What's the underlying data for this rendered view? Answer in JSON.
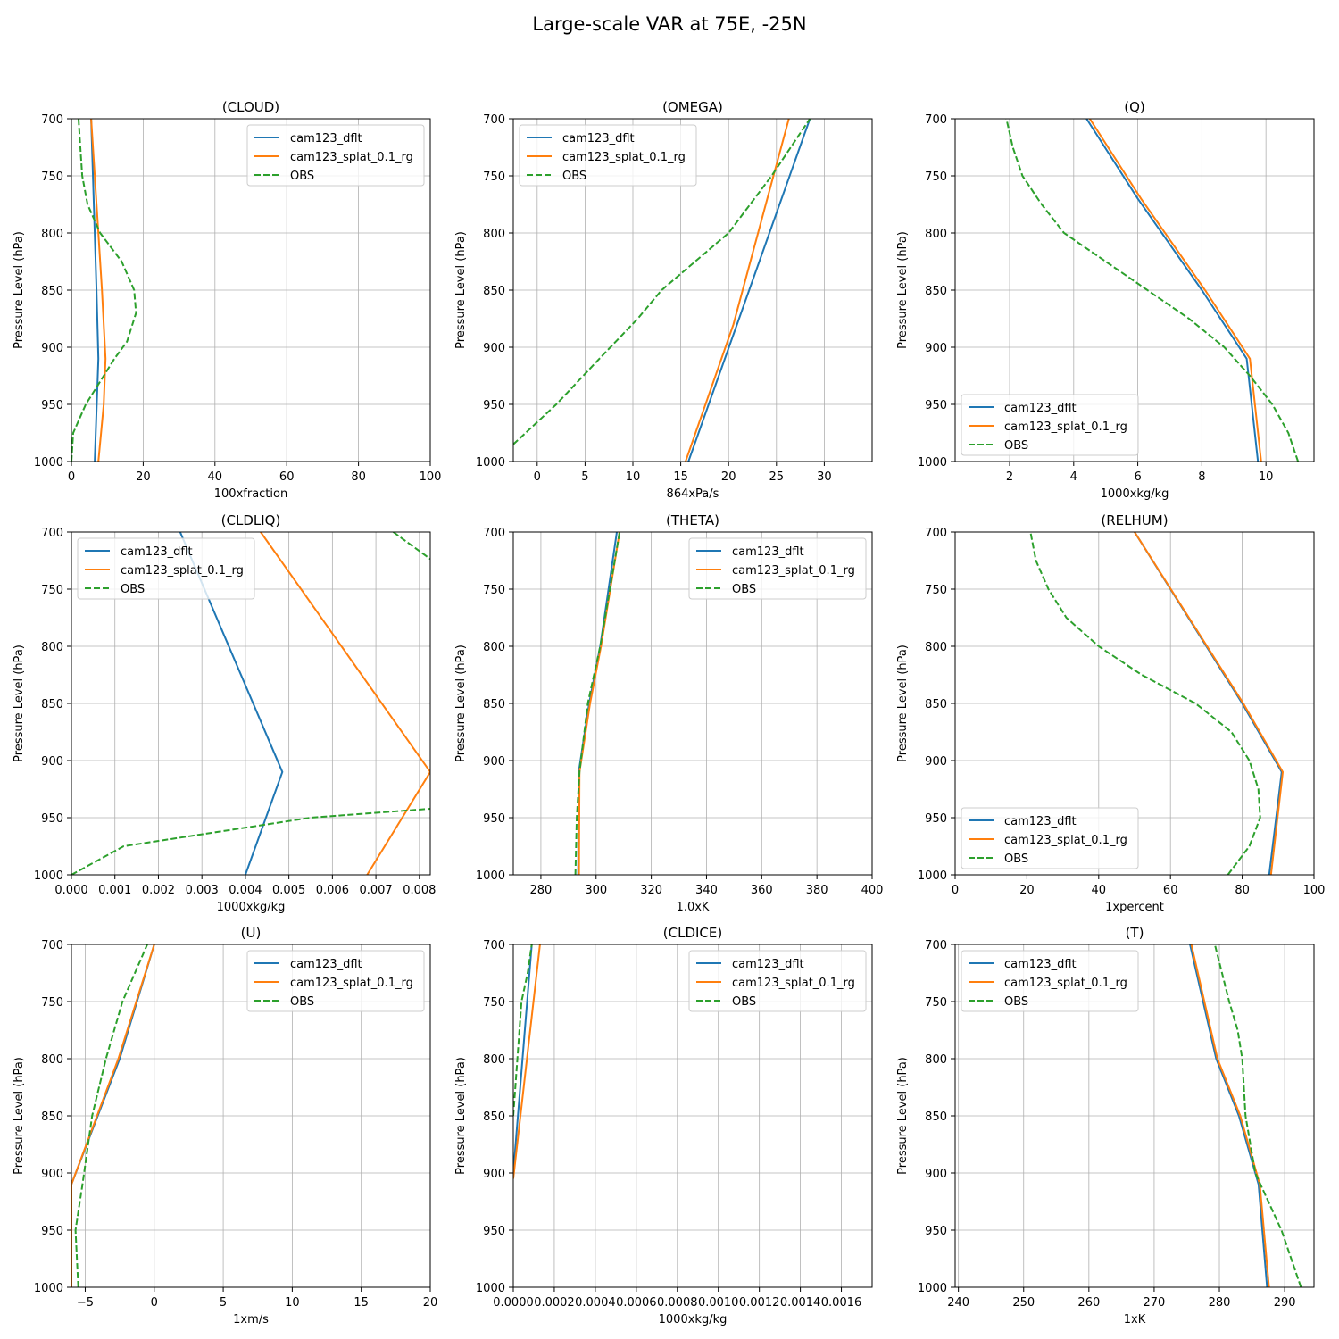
{
  "figure": {
    "title": "Large-scale VAR at 75E, -25N"
  },
  "colors": {
    "cam123_dflt": "#1f77b4",
    "cam123_splat_0.1_rg": "#ff7f0e",
    "OBS": "#2ca02c",
    "grid": "#b0b0b0"
  },
  "chart_data": [
    {
      "type": "line",
      "title": "(CLOUD)",
      "xlabel": "100xfraction",
      "ylabel": "Pressure Level (hPa)",
      "xlim": [
        0,
        100
      ],
      "ylim": [
        1000,
        700
      ],
      "xticks": [
        0,
        20,
        40,
        60,
        80,
        100
      ],
      "xtick_labels": [
        "0",
        "20",
        "40",
        "60",
        "80",
        "100"
      ],
      "yticks": [
        700,
        750,
        800,
        850,
        900,
        950,
        1000
      ],
      "ytick_labels": [
        "700",
        "750",
        "800",
        "850",
        "900",
        "950",
        "1000"
      ],
      "legend": "upper right",
      "grid": true,
      "series": [
        {
          "name": "cam123_dflt",
          "style": "solid",
          "x": [
            6.5,
            7.5,
            7,
            6.5,
            5.5
          ],
          "y": [
            1000,
            910,
            850,
            800,
            700
          ]
        },
        {
          "name": "cam123_splat_0.1_rg",
          "style": "solid",
          "x": [
            7.5,
            9,
            9.5,
            8.5,
            7.5,
            5.5
          ],
          "y": [
            1000,
            950,
            910,
            850,
            800,
            700
          ]
        },
        {
          "name": "OBS",
          "style": "dashed",
          "x": [
            0,
            0.5,
            4,
            8,
            12,
            15.5,
            18,
            17.5,
            14,
            8,
            4.5,
            3,
            2.5,
            2
          ],
          "y": [
            1000,
            975,
            950,
            930,
            910,
            895,
            870,
            850,
            825,
            800,
            775,
            750,
            725,
            700
          ]
        }
      ]
    },
    {
      "type": "line",
      "title": "(OMEGA)",
      "xlabel": "864xPa/s",
      "ylabel": "Pressure Level (hPa)",
      "xlim": [
        -2.5,
        35
      ],
      "ylim": [
        1000,
        700
      ],
      "xticks": [
        0,
        5,
        10,
        15,
        20,
        25,
        30
      ],
      "xtick_labels": [
        "0",
        "5",
        "10",
        "15",
        "20",
        "25",
        "30"
      ],
      "yticks": [
        700,
        750,
        800,
        850,
        900,
        950,
        1000
      ],
      "ytick_labels": [
        "700",
        "750",
        "800",
        "850",
        "900",
        "950",
        "1000"
      ],
      "legend": "upper left",
      "grid": true,
      "series": [
        {
          "name": "cam123_dflt",
          "style": "solid",
          "x": [
            15.8,
            28.5
          ],
          "y": [
            1000,
            700
          ]
        },
        {
          "name": "cam123_splat_0.1_rg",
          "style": "solid",
          "x": [
            15.5,
            20.5,
            26.3
          ],
          "y": [
            1000,
            880,
            700
          ]
        },
        {
          "name": "OBS",
          "style": "dashed",
          "x": [
            -2.5,
            2,
            6.5,
            10.5,
            13,
            16.5,
            20,
            24.5,
            28.5
          ],
          "y": [
            985,
            950,
            910,
            875,
            850,
            825,
            800,
            750,
            700
          ]
        }
      ]
    },
    {
      "type": "line",
      "title": "(Q)",
      "xlabel": "1000xkg/kg",
      "ylabel": "Pressure Level (hPa)",
      "xlim": [
        0.3,
        11.5
      ],
      "ylim": [
        1000,
        700
      ],
      "xticks": [
        2,
        4,
        6,
        8,
        10
      ],
      "xtick_labels": [
        "2",
        "4",
        "6",
        "8",
        "10"
      ],
      "yticks": [
        700,
        750,
        800,
        850,
        900,
        950,
        1000
      ],
      "ytick_labels": [
        "700",
        "750",
        "800",
        "850",
        "900",
        "950",
        "1000"
      ],
      "legend": "lower left",
      "grid": true,
      "series": [
        {
          "name": "cam123_dflt",
          "style": "solid",
          "x": [
            9.75,
            9.4,
            8,
            6,
            4.4
          ],
          "y": [
            1000,
            910,
            850,
            770,
            700
          ]
        },
        {
          "name": "cam123_splat_0.1_rg",
          "style": "solid",
          "x": [
            9.85,
            9.5,
            8.1,
            6.1,
            4.5
          ],
          "y": [
            1000,
            910,
            850,
            770,
            700
          ]
        },
        {
          "name": "OBS",
          "style": "dashed",
          "x": [
            11,
            10.7,
            10.2,
            9.5,
            8.7,
            7.6,
            6.3,
            5,
            3.7,
            3,
            2.4,
            2.1,
            1.9
          ],
          "y": [
            1000,
            975,
            950,
            925,
            900,
            875,
            850,
            825,
            800,
            775,
            750,
            725,
            700
          ]
        }
      ]
    },
    {
      "type": "line",
      "title": "(CLDLIQ)",
      "xlabel": "1000xkg/kg",
      "ylabel": "Pressure Level (hPa)",
      "xlim": [
        0,
        0.00825
      ],
      "ylim": [
        1000,
        700
      ],
      "xticks": [
        0,
        0.001,
        0.002,
        0.003,
        0.004,
        0.005,
        0.006,
        0.007,
        0.008
      ],
      "xtick_labels": [
        "0.000",
        "0.001",
        "0.002",
        "0.003",
        "0.004",
        "0.005",
        "0.006",
        "0.007",
        "0.008"
      ],
      "yticks": [
        700,
        750,
        800,
        850,
        900,
        950,
        1000
      ],
      "ytick_labels": [
        "700",
        "750",
        "800",
        "850",
        "900",
        "950",
        "1000"
      ],
      "legend": "upper left",
      "grid": true,
      "series": [
        {
          "name": "cam123_dflt",
          "style": "solid",
          "x": [
            0.004,
            0.00485,
            0.0025
          ],
          "y": [
            1000,
            910,
            700
          ]
        },
        {
          "name": "cam123_splat_0.1_rg",
          "style": "solid",
          "x": [
            0.0068,
            0.00825,
            0.00435
          ],
          "y": [
            1000,
            910,
            700
          ]
        },
        {
          "name": "OBS",
          "style": "dashed",
          "x": [
            0,
            0.0012,
            0.0055,
            0.0083
          ],
          "y": [
            1000,
            975,
            950,
            942
          ]
        },
        {
          "name": "OBS",
          "style": "dashed",
          "x": [
            0.0074,
            0.0083
          ],
          "y": [
            700,
            725
          ]
        }
      ]
    },
    {
      "type": "line",
      "title": "(THETA)",
      "xlabel": "1.0xK",
      "ylabel": "Pressure Level (hPa)",
      "xlim": [
        270,
        400
      ],
      "ylim": [
        1000,
        700
      ],
      "xticks": [
        280,
        300,
        320,
        340,
        360,
        380,
        400
      ],
      "xtick_labels": [
        "280",
        "300",
        "320",
        "340",
        "360",
        "380",
        "400"
      ],
      "yticks": [
        700,
        750,
        800,
        850,
        900,
        950,
        1000
      ],
      "ytick_labels": [
        "700",
        "750",
        "800",
        "850",
        "900",
        "950",
        "1000"
      ],
      "legend": "upper right",
      "grid": true,
      "series": [
        {
          "name": "cam123_dflt",
          "style": "solid",
          "x": [
            293.5,
            293.7,
            297.5,
            301.5,
            307.5
          ],
          "y": [
            1000,
            910,
            850,
            800,
            700
          ]
        },
        {
          "name": "cam123_splat_0.1_rg",
          "style": "solid",
          "x": [
            293.8,
            294,
            297.8,
            301.8,
            308.5
          ],
          "y": [
            1000,
            910,
            850,
            800,
            700
          ]
        },
        {
          "name": "OBS",
          "style": "dashed",
          "x": [
            292.5,
            293,
            294,
            297,
            301.5,
            305,
            308.5
          ],
          "y": [
            1000,
            950,
            910,
            850,
            800,
            750,
            700
          ]
        }
      ]
    },
    {
      "type": "line",
      "title": "(RELHUM)",
      "xlabel": "1xpercent",
      "ylabel": "Pressure Level (hPa)",
      "xlim": [
        0,
        100
      ],
      "ylim": [
        1000,
        700
      ],
      "xticks": [
        0,
        20,
        40,
        60,
        80,
        100
      ],
      "xtick_labels": [
        "0",
        "20",
        "40",
        "60",
        "80",
        "100"
      ],
      "yticks": [
        700,
        750,
        800,
        850,
        900,
        950,
        1000
      ],
      "ytick_labels": [
        "700",
        "750",
        "800",
        "850",
        "900",
        "950",
        "1000"
      ],
      "legend": "lower left",
      "grid": true,
      "series": [
        {
          "name": "cam123_dflt",
          "style": "solid",
          "x": [
            87.5,
            91,
            80,
            50
          ],
          "y": [
            1000,
            910,
            850,
            700
          ]
        },
        {
          "name": "cam123_splat_0.1_rg",
          "style": "solid",
          "x": [
            88,
            91.3,
            80.3,
            50
          ],
          "y": [
            1000,
            910,
            850,
            700
          ]
        },
        {
          "name": "OBS",
          "style": "dashed",
          "x": [
            76,
            82,
            85,
            84.5,
            82,
            77,
            67,
            52,
            40,
            31,
            26,
            22.5,
            21
          ],
          "y": [
            1000,
            975,
            950,
            925,
            900,
            875,
            850,
            825,
            800,
            775,
            750,
            725,
            700
          ]
        }
      ]
    },
    {
      "type": "line",
      "title": "(U)",
      "xlabel": "1xm/s",
      "ylabel": "Pressure Level (hPa)",
      "xlim": [
        -6,
        20
      ],
      "ylim": [
        1000,
        700
      ],
      "xticks": [
        -5,
        0,
        5,
        10,
        15,
        20
      ],
      "xtick_labels": [
        "−5",
        "0",
        "5",
        "10",
        "15",
        "20"
      ],
      "yticks": [
        700,
        750,
        800,
        850,
        900,
        950,
        1000
      ],
      "ytick_labels": [
        "700",
        "750",
        "800",
        "850",
        "900",
        "950",
        "1000"
      ],
      "legend": "upper right",
      "grid": true,
      "series": [
        {
          "name": "cam123_dflt",
          "style": "solid",
          "x": [
            -6,
            -6,
            -2.5,
            0
          ],
          "y": [
            1000,
            910,
            800,
            700
          ]
        },
        {
          "name": "cam123_splat_0.1_rg",
          "style": "solid",
          "x": [
            -6,
            -6,
            -2.6,
            0
          ],
          "y": [
            1000,
            910,
            800,
            700
          ]
        },
        {
          "name": "OBS",
          "style": "dashed",
          "x": [
            -5.5,
            -5.7,
            -5.2,
            -4.5,
            -3.5,
            -2.3,
            -0.5
          ],
          "y": [
            1000,
            950,
            910,
            850,
            800,
            750,
            700
          ]
        }
      ]
    },
    {
      "type": "line",
      "title": "(CLDICE)",
      "xlabel": "1000xkg/kg",
      "ylabel": "Pressure Level (hPa)",
      "xlim": [
        0,
        0.00175
      ],
      "ylim": [
        1000,
        700
      ],
      "xticks": [
        0,
        0.0002,
        0.0004,
        0.0006,
        0.0008,
        0.001,
        0.0012,
        0.0014,
        0.0016
      ],
      "xtick_labels": [
        "0.0000",
        "0.0002",
        "0.0004",
        "0.0006",
        "0.0008",
        "0.0010",
        "0.0012",
        "0.0014",
        "0.0016"
      ],
      "yticks": [
        700,
        750,
        800,
        850,
        900,
        950,
        1000
      ],
      "ytick_labels": [
        "700",
        "750",
        "800",
        "850",
        "900",
        "950",
        "1000"
      ],
      "legend": "upper right",
      "grid": true,
      "series": [
        {
          "name": "cam123_dflt",
          "style": "solid",
          "x": [
            0,
            9e-05
          ],
          "y": [
            900,
            700
          ]
        },
        {
          "name": "cam123_splat_0.1_rg",
          "style": "solid",
          "x": [
            0,
            0.00013
          ],
          "y": [
            905,
            700
          ]
        },
        {
          "name": "OBS",
          "style": "dashed",
          "x": [
            0,
            1e-05,
            2e-05,
            4e-05,
            7e-05,
            9e-05
          ],
          "y": [
            850,
            825,
            800,
            750,
            725,
            700
          ]
        }
      ]
    },
    {
      "type": "line",
      "title": "(T)",
      "xlabel": "1xK",
      "ylabel": "Pressure Level (hPa)",
      "xlim": [
        239.5,
        294.5
      ],
      "ylim": [
        1000,
        700
      ],
      "xticks": [
        240,
        250,
        260,
        270,
        280,
        290
      ],
      "xtick_labels": [
        "240",
        "250",
        "260",
        "270",
        "280",
        "290"
      ],
      "yticks": [
        700,
        750,
        800,
        850,
        900,
        950,
        1000
      ],
      "ytick_labels": [
        "700",
        "750",
        "800",
        "850",
        "900",
        "950",
        "1000"
      ],
      "legend": "upper left",
      "grid": true,
      "series": [
        {
          "name": "cam123_dflt",
          "style": "solid",
          "x": [
            287.3,
            286,
            283,
            279.5,
            275.5
          ],
          "y": [
            1000,
            910,
            850,
            800,
            700
          ]
        },
        {
          "name": "cam123_splat_0.1_rg",
          "style": "solid",
          "x": [
            287.6,
            286.2,
            283.2,
            279.7,
            275.7
          ],
          "y": [
            1000,
            910,
            850,
            800,
            700
          ]
        },
        {
          "name": "OBS",
          "style": "dashed",
          "x": [
            292.5,
            289.5,
            285.5,
            284,
            283.5,
            282.8,
            281.5,
            279.3
          ],
          "y": [
            1000,
            950,
            900,
            850,
            800,
            775,
            750,
            700
          ]
        }
      ]
    }
  ]
}
